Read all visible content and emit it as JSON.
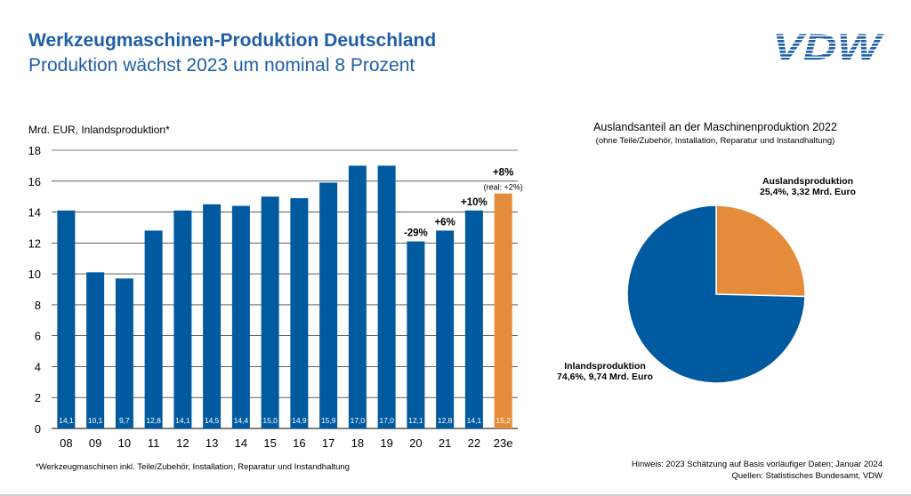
{
  "header": {
    "title": "Werkzeugmaschinen-Produktion Deutschland",
    "subtitle": "Produktion wächst 2023 um nominal 8 Prozent",
    "logo_text": "VDW"
  },
  "colors": {
    "blue": "#005aa0",
    "orange": "#e58c3a",
    "title": "#1f5fa6"
  },
  "chart_data": [
    {
      "type": "bar",
      "ylabel": "Mrd. EUR, Inlandsproduktion*",
      "ylim": [
        0,
        18
      ],
      "yticks": [
        0,
        2,
        4,
        6,
        8,
        10,
        12,
        14,
        16,
        18
      ],
      "grid": true,
      "categories": [
        "08",
        "09",
        "10",
        "11",
        "12",
        "13",
        "14",
        "15",
        "16",
        "17",
        "18",
        "19",
        "20",
        "21",
        "22",
        "23e"
      ],
      "values": [
        14.1,
        10.1,
        9.7,
        12.8,
        14.1,
        14.5,
        14.4,
        15.0,
        14.9,
        15.9,
        17.0,
        17.0,
        12.1,
        12.8,
        14.1,
        15.2
      ],
      "value_labels": [
        "14,1",
        "10,1",
        "9,7",
        "12,8",
        "14,1",
        "14,5",
        "14,4",
        "15,0",
        "14,9",
        "15,9",
        "17,0",
        "17,0",
        "12,1",
        "12,8",
        "14,1",
        "15,2"
      ],
      "estimate_index": 15,
      "annotations": [
        {
          "category": "20",
          "text": "-29%"
        },
        {
          "category": "21",
          "text": "+6%"
        },
        {
          "category": "22",
          "text": "+10%"
        },
        {
          "category": "23e",
          "text": "+8%",
          "subtext": "(real: +2%)"
        }
      ]
    },
    {
      "type": "pie",
      "title": "Auslandsanteil an der Maschinenproduktion 2022",
      "subtitle": "(ohne Teile/Zubehör, Installation, Reparatur und Instandhaltung)",
      "slices": [
        {
          "name": "Auslandsproduktion",
          "detail": "25,4%, 3,32 Mrd. Euro",
          "value": 25.4,
          "color": "#e58c3a"
        },
        {
          "name": "Inlandsproduktion",
          "detail": "74,6%, 9,74 Mrd. Euro",
          "value": 74.6,
          "color": "#005aa0"
        }
      ]
    }
  ],
  "footer": {
    "footnote": "*Werkzeugmaschinen inkl. Teile/Zubehör, Installation, Reparatur und Instandhaltung",
    "hint": "Hinweis: 2023 Schätzung auf Basis vorläufiger Daten; Januar 2024",
    "sources": "Quellen: Statistisches Bundesamt, VDW"
  }
}
